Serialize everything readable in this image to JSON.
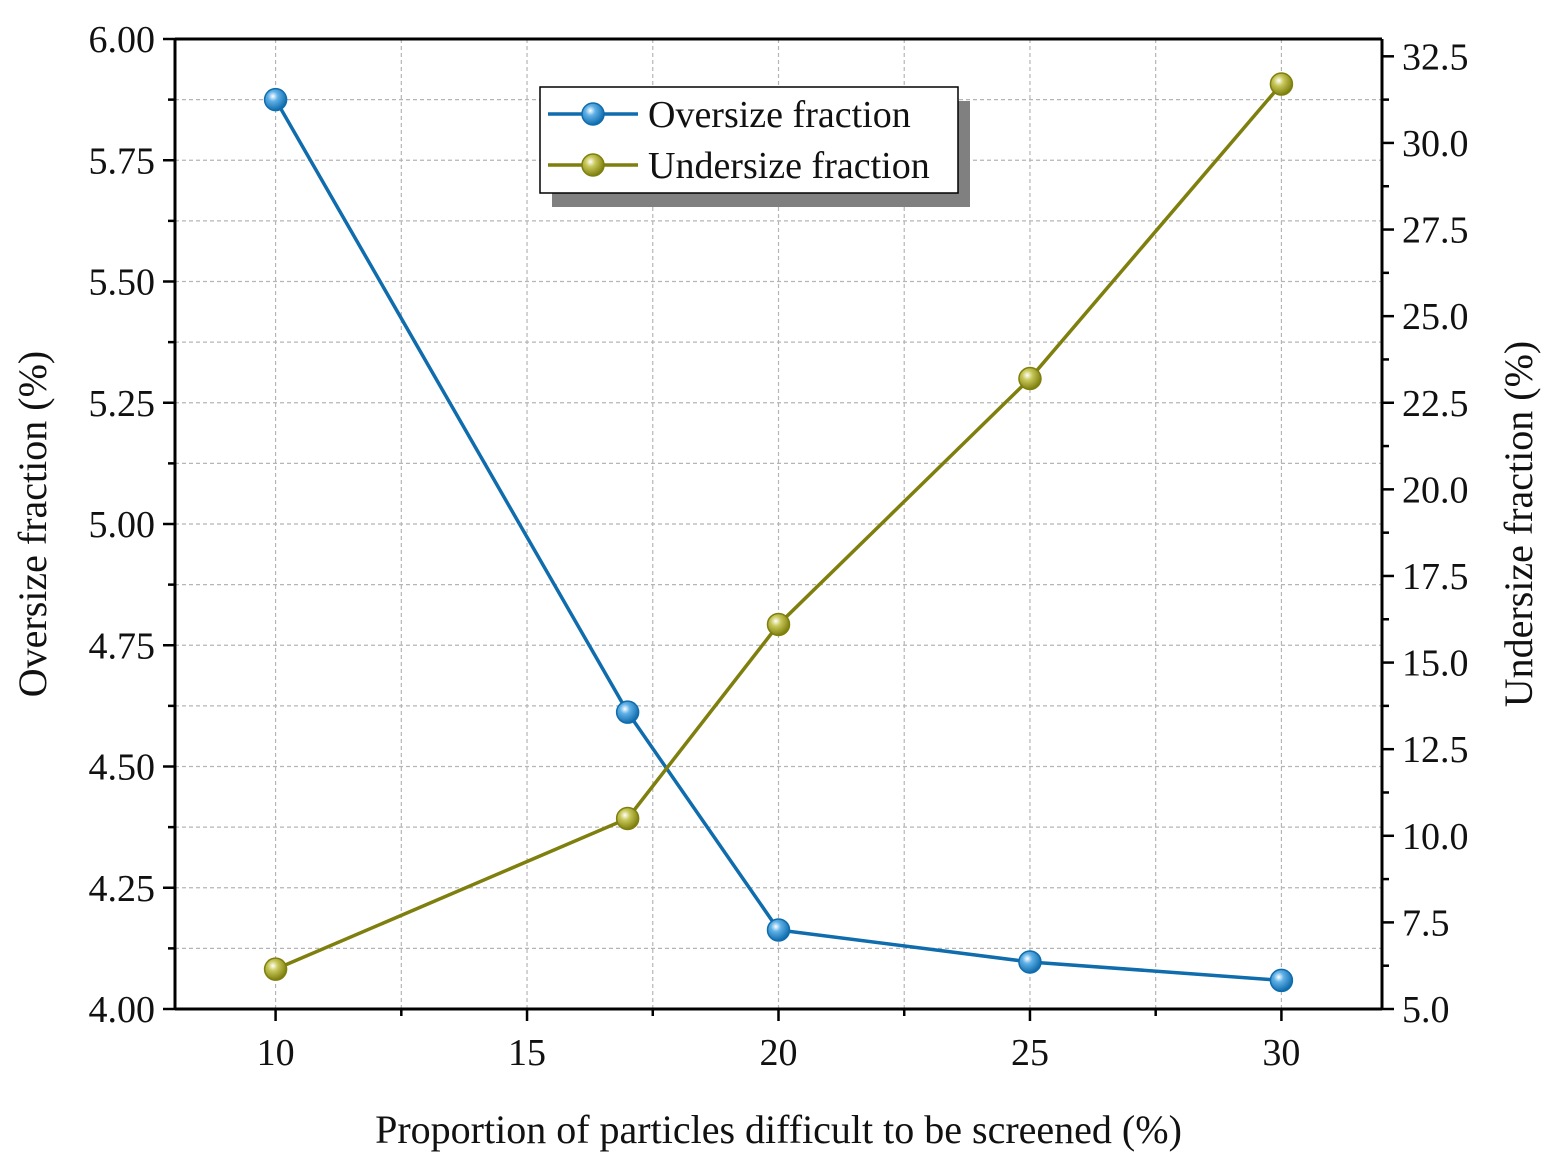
{
  "chart_data": {
    "type": "line",
    "xlabel": "Proportion of particles difficult to be screened (%)",
    "ylabel_left": "Oversize fraction  (%)",
    "ylabel_right": "Undersize fraction (%)",
    "xlim": [
      8,
      32
    ],
    "ylim_left": [
      4.0,
      6.0
    ],
    "ylim_right": [
      5.0,
      33.0
    ],
    "x_ticks": [
      10,
      15,
      20,
      25,
      30
    ],
    "x_tick_labels": [
      "10",
      "15",
      "20",
      "25",
      "30"
    ],
    "y_left_ticks": [
      4.0,
      4.25,
      4.5,
      4.75,
      5.0,
      5.25,
      5.5,
      5.75,
      6.0
    ],
    "y_left_tick_labels": [
      "4.00",
      "4.25",
      "4.50",
      "4.75",
      "5.00",
      "5.25",
      "5.50",
      "5.75",
      "6.00"
    ],
    "y_right_ticks": [
      5.0,
      7.5,
      10.0,
      12.5,
      15.0,
      17.5,
      20.0,
      22.5,
      25.0,
      27.5,
      30.0,
      32.5
    ],
    "y_right_tick_labels": [
      "5.0",
      "7.5",
      "10.0",
      "12.5",
      "15.0",
      "17.5",
      "20.0",
      "22.5",
      "25.0",
      "27.5",
      "30.0",
      "32.5"
    ],
    "grid": true,
    "legend_position": "top-center",
    "series": [
      {
        "name": "Oversize fraction",
        "axis": "left",
        "color": "#0f6cad",
        "x": [
          10,
          17,
          20,
          25,
          30
        ],
        "values": [
          5.875,
          4.612,
          4.163,
          4.097,
          4.059
        ]
      },
      {
        "name": "Undersize fraction",
        "axis": "right",
        "color": "#7f7f0e",
        "x": [
          10,
          17,
          20,
          25,
          30
        ],
        "values": [
          6.15,
          10.5,
          16.1,
          23.2,
          31.7
        ]
      }
    ]
  }
}
